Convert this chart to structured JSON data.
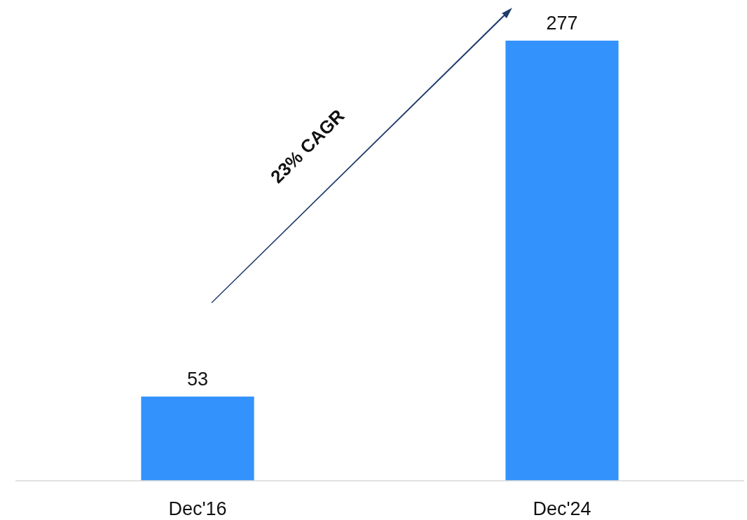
{
  "chart_data": {
    "type": "bar",
    "categories": [
      "Dec'16",
      "Dec'24"
    ],
    "values": [
      53,
      277
    ],
    "color": "#3392fc",
    "data_labels": true,
    "annotations": [
      "23% CAGR"
    ]
  }
}
